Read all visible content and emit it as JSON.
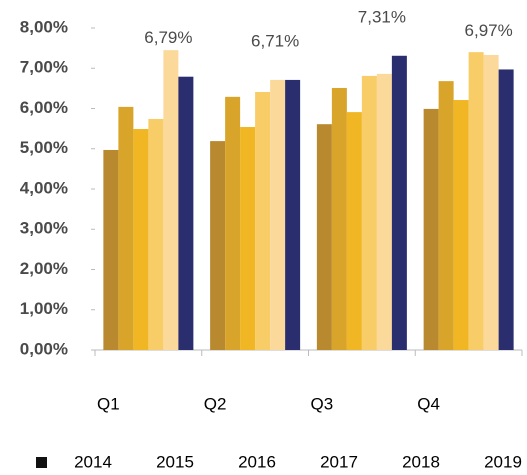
{
  "chart_data": {
    "type": "bar",
    "categories": [
      "Q1",
      "Q2",
      "Q3",
      "Q4"
    ],
    "series": [
      {
        "name": "2014",
        "color": "#b8892e",
        "values": [
          4.97,
          5.19,
          5.61,
          5.99
        ]
      },
      {
        "name": "2015",
        "color": "#d9a42a",
        "values": [
          6.04,
          6.29,
          6.51,
          6.68
        ]
      },
      {
        "name": "2016",
        "color": "#f0b623",
        "values": [
          5.49,
          5.54,
          5.91,
          6.21
        ]
      },
      {
        "name": "2017",
        "color": "#f8cc66",
        "values": [
          5.74,
          6.41,
          6.81,
          7.4
        ]
      },
      {
        "name": "2018",
        "color": "#fbd99a",
        "values": [
          7.45,
          6.71,
          6.86,
          7.33
        ]
      },
      {
        "name": "2019",
        "color": "#2b2e6e",
        "values": [
          6.79,
          6.71,
          7.31,
          6.97
        ],
        "value_labels": [
          "6,79%",
          "6,71%",
          "7,31%",
          "6,97%"
        ]
      }
    ],
    "ylim": [
      0,
      8
    ],
    "yticks": [
      {
        "value": 0,
        "label": "0,00%"
      },
      {
        "value": 1,
        "label": "1,00%"
      },
      {
        "value": 2,
        "label": "2,00%"
      },
      {
        "value": 3,
        "label": "3,00%"
      },
      {
        "value": 4,
        "label": "4,00%"
      },
      {
        "value": 5,
        "label": "5,00%"
      },
      {
        "value": 6,
        "label": "6,00%"
      },
      {
        "value": 7,
        "label": "7,00%"
      },
      {
        "value": 8,
        "label": "8,00%"
      }
    ],
    "grid": false
  }
}
